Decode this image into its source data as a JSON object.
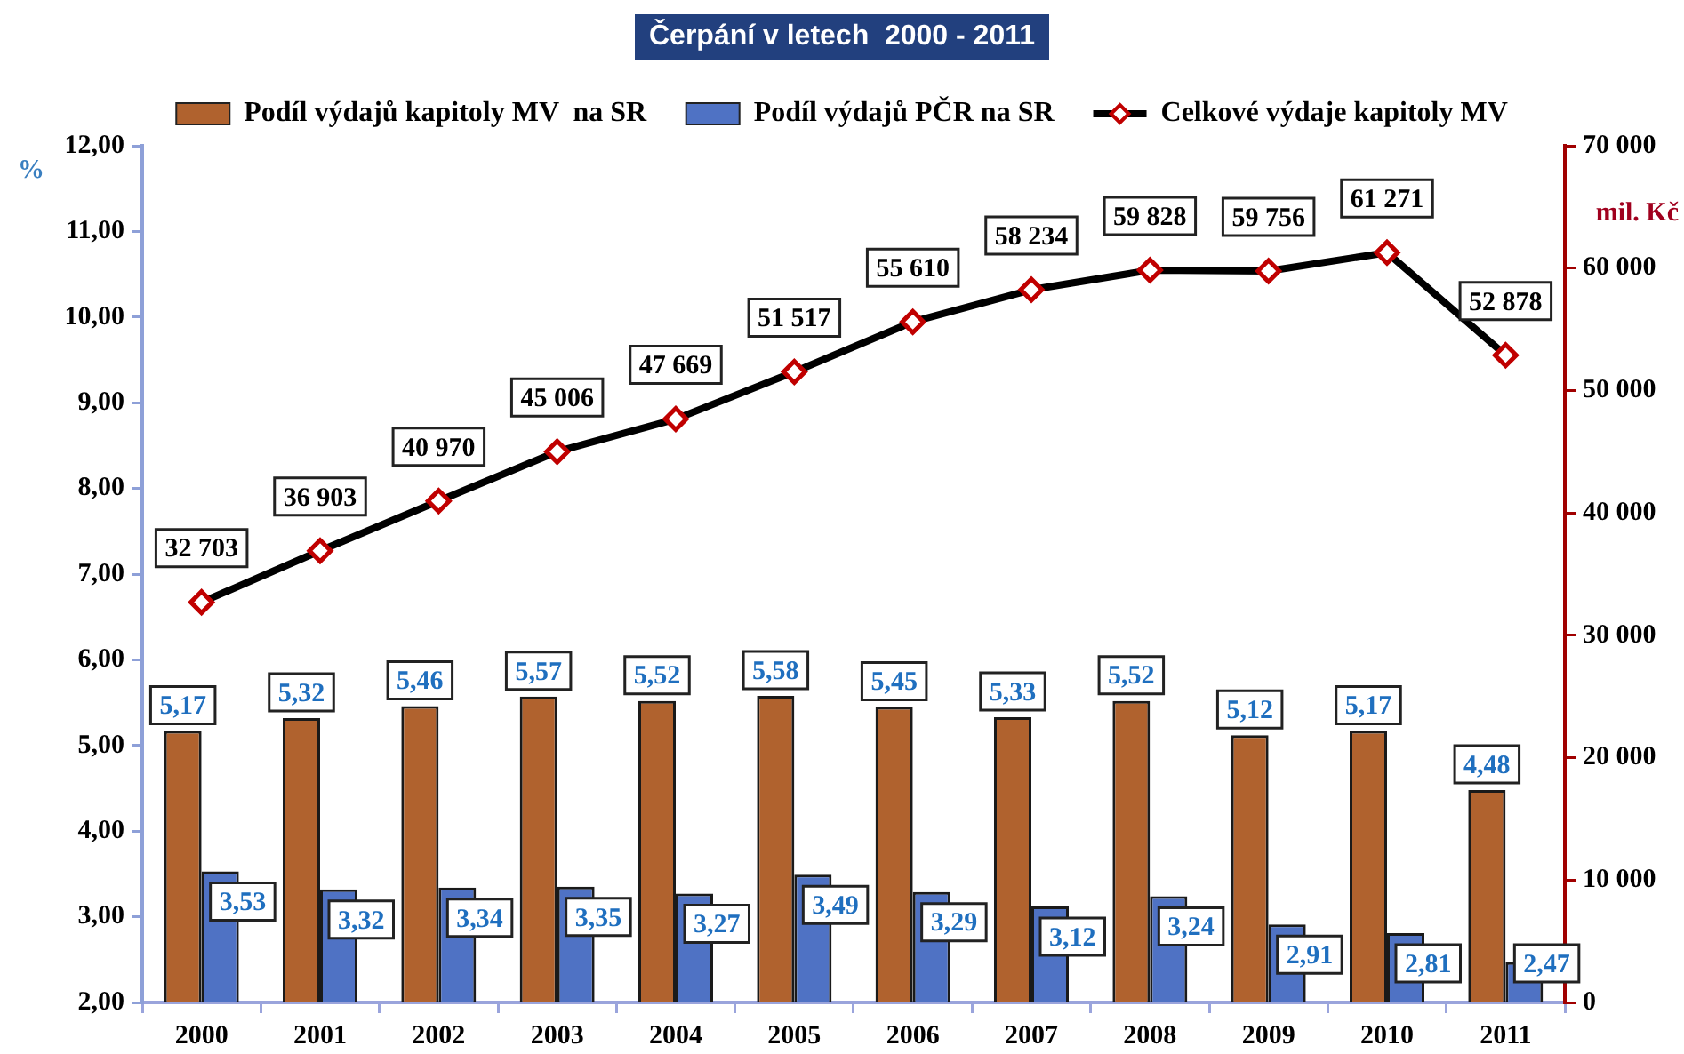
{
  "chart_data": {
    "type": "bar",
    "title": "Čerpání v letech  2000 - 2011",
    "ylabel": "%",
    "y2label": "mil. Kč",
    "categories": [
      "2000",
      "2001",
      "2002",
      "2003",
      "2004",
      "2005",
      "2006",
      "2007",
      "2008",
      "2009",
      "2010",
      "2011"
    ],
    "series": [
      {
        "name": "Podíl výdajů kapitoly MV  na SR",
        "color": "#b0622e",
        "values": [
          5.17,
          5.32,
          5.46,
          5.57,
          5.52,
          5.58,
          5.45,
          5.33,
          5.52,
          5.12,
          5.17,
          4.48
        ],
        "value_labels": [
          "5,17",
          "5,32",
          "5,46",
          "5,57",
          "5,52",
          "5,58",
          "5,45",
          "5,33",
          "5,52",
          "5,12",
          "5,17",
          "4,48"
        ]
      },
      {
        "name": "Podíl výdajů PČR na SR",
        "color": "#4f72c4",
        "values": [
          3.53,
          3.32,
          3.34,
          3.35,
          3.27,
          3.49,
          3.29,
          3.12,
          3.24,
          2.91,
          2.81,
          2.47
        ],
        "value_labels": [
          "3,53",
          "3,32",
          "3,34",
          "3,35",
          "3,27",
          "3,49",
          "3,29",
          "3,12",
          "3,24",
          "2,91",
          "2,81",
          "2,47"
        ]
      },
      {
        "name": "Celkové výdaje kapitoly MV",
        "type": "line",
        "axis": "y2",
        "color": "#000000",
        "values": [
          32703,
          36903,
          40970,
          45006,
          47669,
          51517,
          55610,
          58234,
          59828,
          59756,
          61271,
          52878
        ],
        "value_labels": [
          "32 703",
          "36 903",
          "40 970",
          "45 006",
          "47 669",
          "51 517",
          "55 610",
          "58 234",
          "59 828",
          "59 756",
          "61 271",
          "52 878"
        ]
      }
    ],
    "ylim": [
      2,
      12
    ],
    "yticks": [
      {
        "value": 2,
        "label": "2,00"
      },
      {
        "value": 3,
        "label": "3,00"
      },
      {
        "value": 4,
        "label": "4,00"
      },
      {
        "value": 5,
        "label": "5,00"
      },
      {
        "value": 6,
        "label": "6,00"
      },
      {
        "value": 7,
        "label": "7,00"
      },
      {
        "value": 8,
        "label": "8,00"
      },
      {
        "value": 9,
        "label": "9,00"
      },
      {
        "value": 10,
        "label": "10,00"
      },
      {
        "value": 11,
        "label": "11,00"
      },
      {
        "value": 12,
        "label": "12,00"
      }
    ],
    "y2lim": [
      0,
      70000
    ],
    "y2ticks": [
      0,
      {
        "value": 10000,
        "label": "10 000"
      },
      {
        "value": 20000,
        "label": "20 000"
      },
      {
        "value": 30000,
        "label": "30 000"
      },
      {
        "value": 40000,
        "label": "40 000"
      },
      {
        "value": 50000,
        "label": "50 000"
      },
      {
        "value": 60000,
        "label": "60 000"
      },
      {
        "value": 70000,
        "label": "70 000"
      }
    ],
    "grid": false,
    "legend": "top",
    "marker": "diamond",
    "line_style": "solid"
  }
}
